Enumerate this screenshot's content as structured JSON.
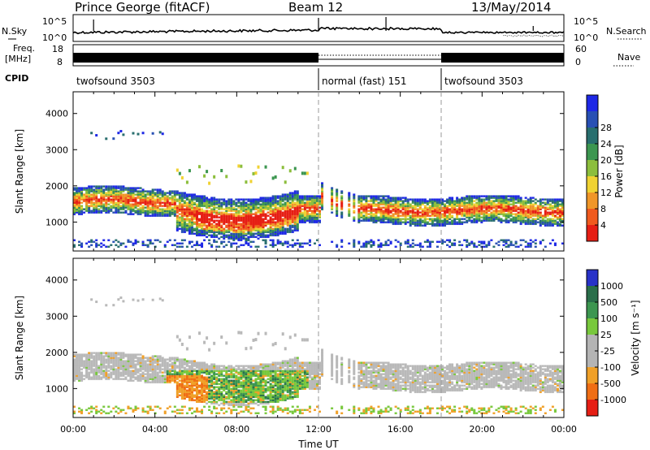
{
  "header": {
    "station": "Prince George (fitACF)",
    "beam": "Beam 12",
    "date": "13/May/2014"
  },
  "noise_panel": {
    "left_label": "N.Sky",
    "right_label": "N.Search",
    "y_ticks_left": [
      "10^5",
      "10^0"
    ],
    "y_ticks_right": [
      "10^5",
      "10^0"
    ]
  },
  "freq_panel": {
    "left_label_line1": "Freq.",
    "left_label_line2": "[MHz]",
    "right_label": "Nave",
    "y_ticks_left": [
      "18",
      "8"
    ],
    "y_ticks_right": [
      "60",
      "0"
    ]
  },
  "cpid_panel": {
    "label": "CPID",
    "segments": [
      {
        "label": "twofsound 3503",
        "start_hour": 0,
        "end_hour": 12
      },
      {
        "label": "normal (fast) 151",
        "start_hour": 12,
        "end_hour": 18
      },
      {
        "label": "twofsound 3503",
        "start_hour": 18,
        "end_hour": 24
      }
    ]
  },
  "colors": {
    "power_scale": [
      "#1e28e6",
      "#2850b4",
      "#286e6e",
      "#3c9650",
      "#8cbe3c",
      "#f0d232",
      "#f09628",
      "#f05a1e",
      "#e61e14"
    ],
    "velocity_scale": [
      "#2832c8",
      "#2a6e4a",
      "#3c9650",
      "#78c83c",
      "#b4b4b4",
      "#b4b4b4",
      "#f0a028",
      "#f06e14",
      "#e61e14"
    ]
  },
  "chart_data": [
    {
      "type": "heatmap",
      "panel": "power",
      "ylabel": "Slant Range [km]",
      "y_ticks": [
        "1000",
        "2000",
        "3000",
        "4000"
      ],
      "ylim": [
        200,
        4600
      ],
      "xlim_hours": [
        0,
        24
      ],
      "colorbar_label": "Power [dB]",
      "colorbar_ticks": [
        "4",
        "8",
        "12",
        "16",
        "20",
        "24",
        "28"
      ]
    },
    {
      "type": "heatmap",
      "panel": "velocity",
      "xlabel": "Time UT",
      "ylabel": "Slant Range [km]",
      "y_ticks": [
        "1000",
        "2000",
        "3000",
        "4000"
      ],
      "ylim": [
        200,
        4600
      ],
      "xlim_hours": [
        0,
        24
      ],
      "x_ticks": [
        "00:00",
        "04:00",
        "08:00",
        "12:00",
        "16:00",
        "20:00",
        "00:00"
      ],
      "colorbar_label": "Velocity [m s⁻¹]",
      "colorbar_ticks": [
        "1000",
        "500",
        "100",
        "25",
        "-25",
        "-100",
        "-500",
        "-1000"
      ]
    }
  ]
}
